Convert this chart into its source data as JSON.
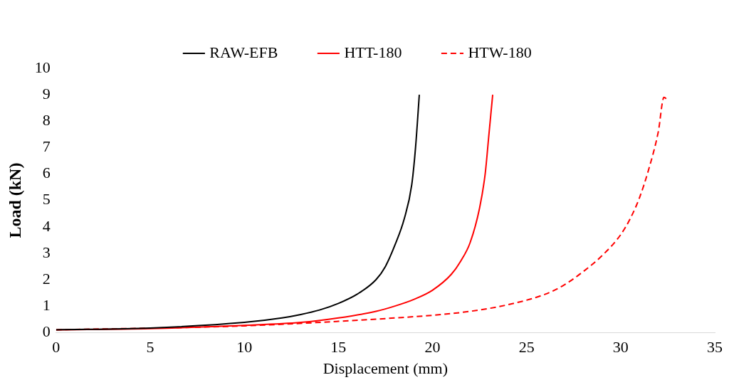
{
  "chart_data": {
    "type": "line",
    "xlabel": "Displacement (mm)",
    "ylabel": "Load (kN)",
    "xlim": [
      0,
      35
    ],
    "xticks": [
      0,
      5,
      10,
      15,
      20,
      25,
      30,
      35
    ],
    "ylim": [
      0,
      10
    ],
    "yticks": [
      0,
      1,
      2,
      3,
      4,
      5,
      6,
      7,
      8,
      9,
      10
    ],
    "grid": false,
    "legend": "top",
    "marker": "none",
    "series": [
      {
        "name": "RAW-EFB",
        "color": "#000000",
        "line_style": "solid",
        "x": [
          0,
          5,
          10,
          12,
          13,
          14,
          15,
          16,
          17,
          17.5,
          18,
          18.5,
          18.9,
          19.1,
          19.3
        ],
        "values": [
          0.1,
          0.17,
          0.38,
          0.55,
          0.68,
          0.85,
          1.1,
          1.45,
          2.0,
          2.5,
          3.3,
          4.3,
          5.6,
          7.0,
          9.0
        ]
      },
      {
        "name": "HTT-180",
        "color": "#ff0000",
        "line_style": "solid",
        "x": [
          0,
          5,
          10,
          13,
          15,
          17,
          18,
          19,
          20,
          21,
          21.5,
          22,
          22.5,
          22.8,
          23,
          23.2
        ],
        "values": [
          0.1,
          0.15,
          0.27,
          0.38,
          0.55,
          0.8,
          1.0,
          1.25,
          1.6,
          2.2,
          2.7,
          3.4,
          4.7,
          6.0,
          7.5,
          9.0
        ]
      },
      {
        "name": "HTW-180",
        "color": "#ff0000",
        "line_style": "dashed",
        "x": [
          0,
          10,
          15,
          18,
          20,
          22,
          24,
          26,
          27,
          28,
          29,
          30,
          30.5,
          31,
          31.5,
          32,
          32.3,
          32.5
        ],
        "values": [
          0.1,
          0.25,
          0.42,
          0.55,
          0.65,
          0.8,
          1.05,
          1.45,
          1.8,
          2.3,
          2.9,
          3.7,
          4.3,
          5.1,
          6.2,
          7.6,
          8.9,
          8.8
        ]
      }
    ]
  }
}
